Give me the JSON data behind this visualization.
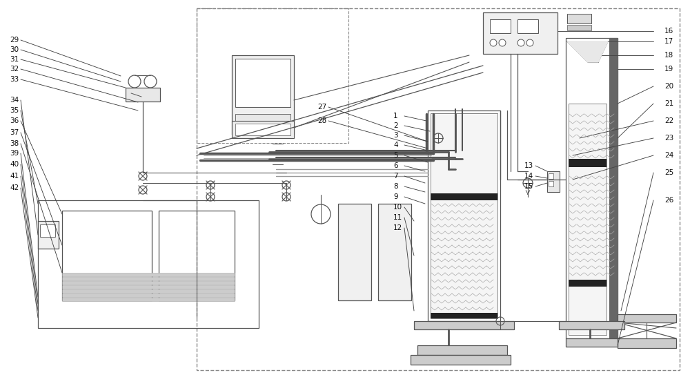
{
  "bg_color": "#ffffff",
  "lc": "#555555",
  "lc2": "#333333",
  "figsize": [
    10.0,
    5.43
  ],
  "dpi": 100
}
